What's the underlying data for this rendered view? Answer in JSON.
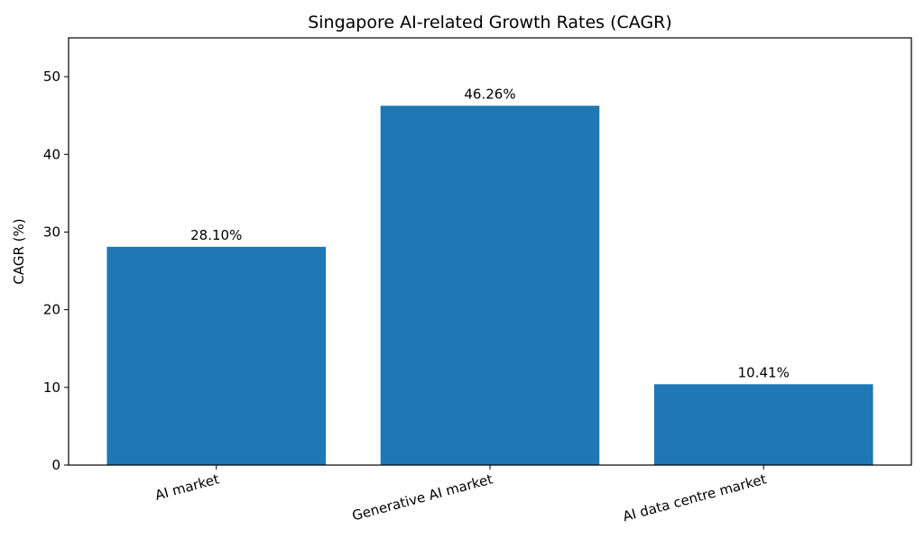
{
  "chart_data": {
    "type": "bar",
    "title": "Singapore AI-related Growth Rates (CAGR)",
    "xlabel": "",
    "ylabel": "CAGR (%)",
    "categories": [
      "AI market",
      "Generative AI market",
      "AI data centre market"
    ],
    "values": [
      28.1,
      46.26,
      10.41
    ],
    "data_labels": [
      "28.10%",
      "46.26%",
      "10.41%"
    ],
    "ylim": [
      0,
      55
    ],
    "yticks": [
      0,
      10,
      20,
      30,
      40,
      50
    ],
    "ytick_labels": [
      "0",
      "10",
      "20",
      "30",
      "40",
      "50"
    ],
    "grid": false,
    "bar_color": "#1f77b4",
    "xtick_rotation_deg": 15
  }
}
